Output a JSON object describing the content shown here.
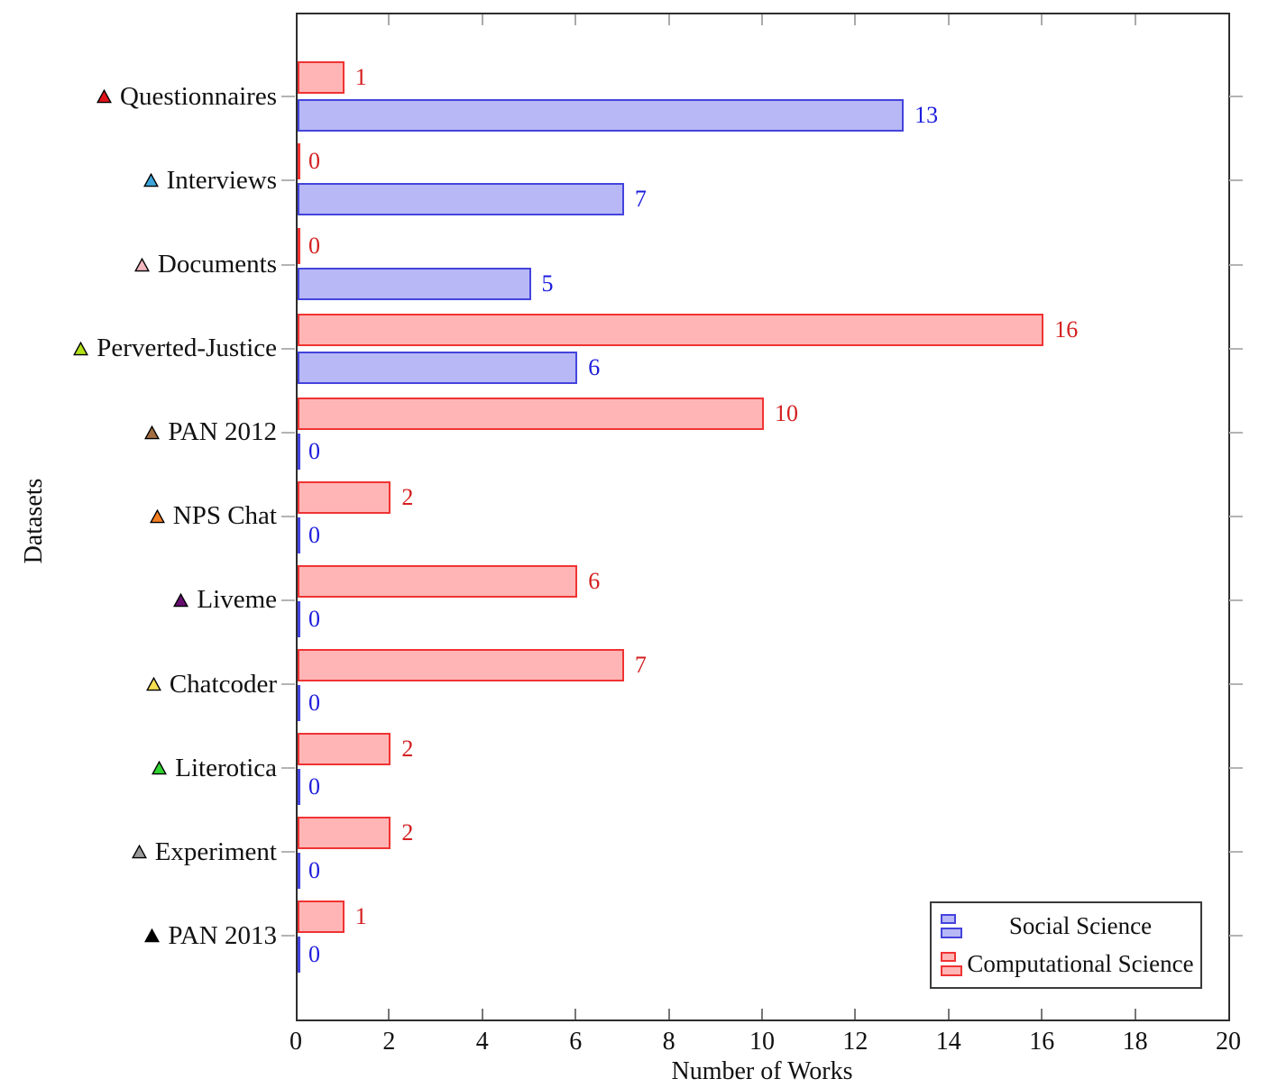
{
  "chart_data": {
    "type": "bar",
    "orientation": "horizontal",
    "xlabel": "Number of Works",
    "ylabel": "Datasets",
    "xlim": [
      0,
      20
    ],
    "xticks": [
      0,
      2,
      4,
      6,
      8,
      10,
      12,
      14,
      16,
      18,
      20
    ],
    "grid": false,
    "legend_position": "bottom-right",
    "categories": [
      "Questionnaires",
      "Interviews",
      "Documents",
      "Perverted-Justice",
      "PAN 2012",
      "NPS Chat",
      "Liveme",
      "Chatcoder",
      "Literotica",
      "Experiment",
      "PAN 2013"
    ],
    "category_markers": [
      {
        "shape": "triangle",
        "color": "#e0151c"
      },
      {
        "shape": "triangle",
        "color": "#3da5d9"
      },
      {
        "shape": "triangle",
        "color": "#f2b7c0"
      },
      {
        "shape": "triangle",
        "color": "#b2e018"
      },
      {
        "shape": "triangle",
        "color": "#a26e3f"
      },
      {
        "shape": "triangle",
        "color": "#f57e20"
      },
      {
        "shape": "triangle",
        "color": "#670d70"
      },
      {
        "shape": "triangle",
        "color": "#f6df52"
      },
      {
        "shape": "triangle",
        "color": "#2fd430"
      },
      {
        "shape": "triangle",
        "color": "#9a9a9a"
      },
      {
        "shape": "triangle",
        "color": "#000000"
      }
    ],
    "series": [
      {
        "name": "Social Science",
        "fill_color": "#b8b8f6",
        "border_color": "#4444dd",
        "label_color": "#1c1cdd",
        "values": [
          13,
          7,
          5,
          6,
          0,
          0,
          0,
          0,
          0,
          0,
          0
        ]
      },
      {
        "name": "Computational Science",
        "fill_color": "#ffb5b5",
        "border_color": "#f03333",
        "label_color": "#d41f1f",
        "values": [
          1,
          0,
          0,
          16,
          10,
          2,
          6,
          7,
          2,
          2,
          1
        ]
      }
    ]
  }
}
